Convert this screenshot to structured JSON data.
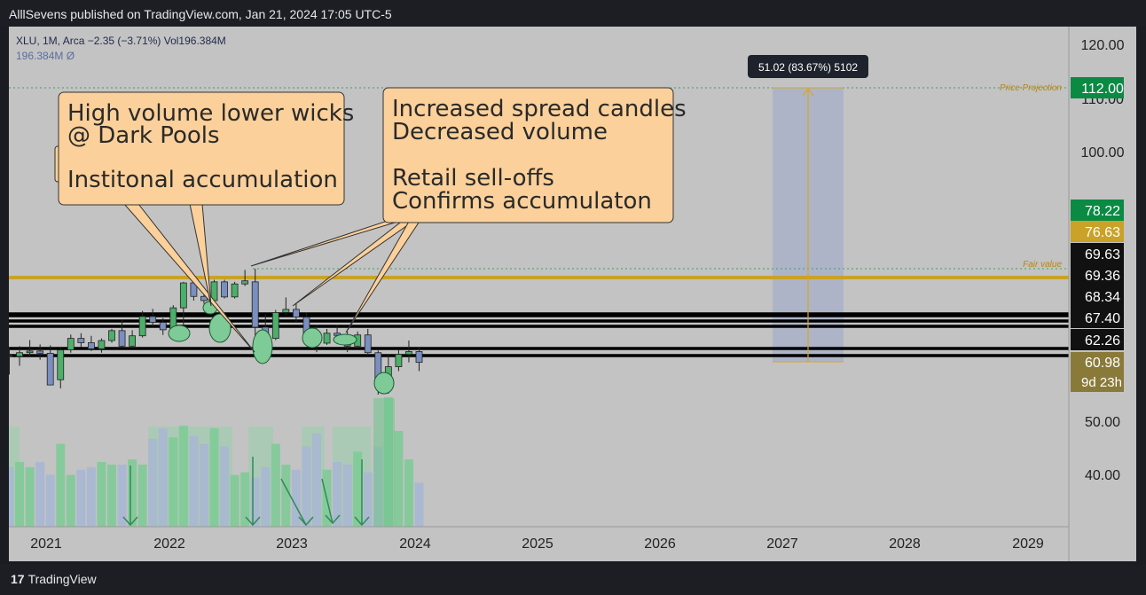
{
  "header": {
    "published_text": "AlllSevens published on TradingView.com, Jan 21, 2024 17:05 UTC-5"
  },
  "footer": {
    "brand": "TradingView",
    "logo_glyph": "17"
  },
  "legend": {
    "line1": "XLU, 1M, Arca  −2.35 (−3.71%)  Vol196.384M",
    "line2": "196.384M  Ø"
  },
  "colors": {
    "background": "#c3c3c3",
    "up_candle": "#4caf6a",
    "down_candle": "#7a8fbf",
    "volume_up": "#7fcb97",
    "volume_down": "#a9b7d3",
    "fair_value_line": "#c9a227",
    "projection_box": "#a9b0c9",
    "callout_fill": "#fbd09a"
  },
  "chart_data": {
    "type": "candlestick",
    "symbol": "XLU",
    "interval": "1M",
    "exchange": "Arca",
    "x_axis_labels": [
      "2021",
      "2022",
      "2023",
      "2024",
      "2025",
      "2026",
      "2027",
      "2028",
      "2029"
    ],
    "y_axis_ticks": [
      40,
      50,
      100,
      110,
      120
    ],
    "y_axis_tick_labels": [
      "40.00",
      "50.00",
      "100.00",
      "110.00",
      "120.00"
    ],
    "price_labels": [
      {
        "value": "112.00",
        "bg": "#0a8a43"
      },
      {
        "value": "78.22",
        "bg": "#0a8a43"
      },
      {
        "value": "76.63",
        "bg": "#c9a227"
      },
      {
        "value": "69.63",
        "bg": "#111111"
      },
      {
        "value": "69.36",
        "bg": "#111111"
      },
      {
        "value": "68.34",
        "bg": "#111111"
      },
      {
        "value": "67.40",
        "bg": "#111111"
      },
      {
        "value": "62.26",
        "bg": "#111111"
      },
      {
        "value": "60.98",
        "bg": "#8a7a3a"
      }
    ],
    "countdown_label": "9d 23h",
    "candles": [
      {
        "o": 61.0,
        "h": 62.5,
        "l": 58.8,
        "c": 60.9
      },
      {
        "o": 60.9,
        "h": 62.8,
        "l": 59.8,
        "c": 61.5
      },
      {
        "o": 61.5,
        "h": 64.2,
        "l": 60.8,
        "c": 61.8
      },
      {
        "o": 61.8,
        "h": 63.2,
        "l": 60.5,
        "c": 61.4
      },
      {
        "o": 61.4,
        "h": 63.0,
        "l": 57.8,
        "c": 57.6
      },
      {
        "o": 58.2,
        "h": 62.4,
        "l": 57.2,
        "c": 62.0
      },
      {
        "o": 62.0,
        "h": 65.5,
        "l": 61.5,
        "c": 64.6
      },
      {
        "o": 64.6,
        "h": 65.8,
        "l": 62.6,
        "c": 63.6
      },
      {
        "o": 63.6,
        "h": 65.2,
        "l": 61.8,
        "c": 62.2
      },
      {
        "o": 62.2,
        "h": 64.6,
        "l": 61.5,
        "c": 64.1
      },
      {
        "o": 64.1,
        "h": 66.8,
        "l": 63.6,
        "c": 66.4
      },
      {
        "o": 66.4,
        "h": 68.6,
        "l": 62.6,
        "c": 62.8
      },
      {
        "o": 62.8,
        "h": 66.5,
        "l": 62.3,
        "c": 65.2
      },
      {
        "o": 65.2,
        "h": 70.2,
        "l": 64.8,
        "c": 69.2
      },
      {
        "o": 69.2,
        "h": 70.6,
        "l": 67.3,
        "c": 68.1
      },
      {
        "o": 68.1,
        "h": 68.9,
        "l": 65.4,
        "c": 66.6
      },
      {
        "o": 66.6,
        "h": 71.3,
        "l": 66.1,
        "c": 70.8
      },
      {
        "o": 70.8,
        "h": 75.8,
        "l": 67.6,
        "c": 75.6
      },
      {
        "o": 75.6,
        "h": 75.9,
        "l": 72.2,
        "c": 73.0
      },
      {
        "o": 73.0,
        "h": 74.8,
        "l": 71.6,
        "c": 72.2
      },
      {
        "o": 72.2,
        "h": 76.2,
        "l": 71.9,
        "c": 75.8
      },
      {
        "o": 75.8,
        "h": 76.2,
        "l": 72.6,
        "c": 72.9
      },
      {
        "o": 72.9,
        "h": 75.8,
        "l": 72.6,
        "c": 75.4
      },
      {
        "o": 75.4,
        "h": 78.0,
        "l": 75.0,
        "c": 76.0
      },
      {
        "o": 75.8,
        "h": 78.2,
        "l": 63.0,
        "c": 67.2
      },
      {
        "o": 67.2,
        "h": 69.6,
        "l": 63.6,
        "c": 64.6
      },
      {
        "o": 64.6,
        "h": 70.4,
        "l": 64.2,
        "c": 69.9
      },
      {
        "o": 69.9,
        "h": 72.8,
        "l": 69.4,
        "c": 70.5
      },
      {
        "o": 70.5,
        "h": 71.6,
        "l": 68.2,
        "c": 69.1
      },
      {
        "o": 69.1,
        "h": 69.9,
        "l": 64.8,
        "c": 65.9
      },
      {
        "o": 65.9,
        "h": 67.6,
        "l": 61.6,
        "c": 63.5
      },
      {
        "o": 63.5,
        "h": 66.8,
        "l": 63.1,
        "c": 65.8
      },
      {
        "o": 65.8,
        "h": 67.6,
        "l": 64.1,
        "c": 65.3
      },
      {
        "o": 65.3,
        "h": 66.2,
        "l": 61.6,
        "c": 62.8
      },
      {
        "o": 62.8,
        "h": 66.2,
        "l": 62.3,
        "c": 65.4
      },
      {
        "o": 65.4,
        "h": 66.8,
        "l": 61.0,
        "c": 61.5
      },
      {
        "o": 61.5,
        "h": 61.9,
        "l": 56.0,
        "c": 57.6
      },
      {
        "o": 57.6,
        "h": 61.2,
        "l": 56.2,
        "c": 59.7
      },
      {
        "o": 59.7,
        "h": 62.1,
        "l": 59.2,
        "c": 61.2
      },
      {
        "o": 61.2,
        "h": 64.1,
        "l": 60.2,
        "c": 61.7
      },
      {
        "o": 61.7,
        "h": 62.6,
        "l": 59.2,
        "c": 60.2
      }
    ],
    "volume_relative": [
      0.46,
      0.5,
      0.46,
      0.5,
      0.4,
      0.64,
      0.4,
      0.44,
      0.46,
      0.5,
      0.48,
      0.48,
      0.52,
      0.48,
      0.68,
      0.76,
      0.69,
      0.78,
      0.7,
      0.64,
      0.76,
      0.62,
      0.4,
      0.42,
      0.38,
      0.46,
      0.64,
      0.48,
      0.44,
      0.62,
      0.72,
      0.44,
      0.5,
      0.48,
      0.58,
      0.42,
      0.62,
      1.0,
      0.74,
      0.52,
      0.34
    ],
    "horizontal_levels": [
      69.63,
      69.36,
      68.34,
      67.4,
      62.26
    ],
    "fair_value": {
      "value": 76.63,
      "label": "Fair value"
    },
    "fair_value_dotted": 78.22,
    "price_projection": {
      "value": 112.0,
      "label": "Price Projection",
      "from": 60.98,
      "measure_label": "51.02 (83.67%) 5102"
    },
    "annotations": [
      "High volume lower wicks\n@ Dark Pools\n\nInstitonal accumulation",
      "Increased spread candles\nDecreased volume\n\nRetail sell-offs\nConfirms accumulaton"
    ]
  }
}
